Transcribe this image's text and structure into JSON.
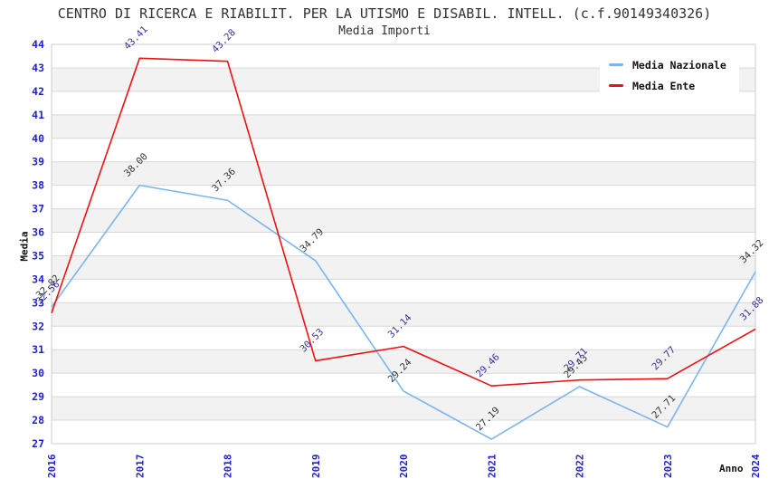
{
  "title": "CENTRO DI RICERCA E RIABILIT. PER LA UTISMO E DISABIL. INTELL. (c.f.90149340326)",
  "subtitle": "Media Importi",
  "axes": {
    "y_label": "Media",
    "x_label": "Anno"
  },
  "legend": [
    {
      "label": "Media Nazionale",
      "color": "#7cb5ec"
    },
    {
      "label": "Media Ente",
      "color": "#ee1111"
    }
  ],
  "colors": {
    "tick_label": "#2020d0",
    "grid_line": "#d8d8d8",
    "band_fill": "#f2f2f2",
    "plot_border": "#cccccc",
    "title_text": "#333333"
  },
  "chart_data": {
    "type": "line",
    "x": [
      "2016",
      "2017",
      "2018",
      "2019",
      "2020",
      "2021",
      "2022",
      "2023",
      "2024"
    ],
    "series": [
      {
        "name": "Media Nazionale",
        "color": "#7cb5ec",
        "label_color": "#333333",
        "values": [
          32.82,
          38.0,
          37.36,
          34.79,
          29.24,
          27.19,
          29.43,
          27.71,
          34.32
        ]
      },
      {
        "name": "Media Ente",
        "color": "#ee1111",
        "label_color": "#333399",
        "values": [
          32.56,
          43.41,
          43.28,
          30.53,
          31.14,
          29.46,
          29.71,
          29.77,
          31.88
        ]
      }
    ],
    "ylim": [
      27,
      44
    ],
    "ytick_step": 1,
    "xlabel": "Anno",
    "ylabel": "Media",
    "grid": true,
    "legend_position": "top-right",
    "value_label_decimals": 2
  }
}
